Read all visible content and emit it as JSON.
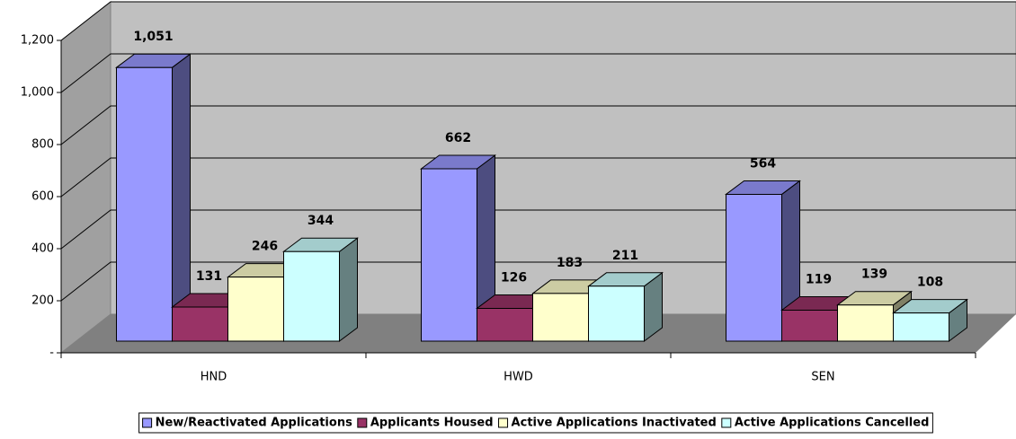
{
  "chart_data": {
    "type": "bar3d",
    "categories": [
      "HND",
      "HWD",
      "SEN"
    ],
    "series": [
      {
        "name": "New/Reactivated Applications",
        "color": "#9999ff",
        "values": [
          1051,
          662,
          564
        ],
        "value_labels": [
          "1,051",
          "662",
          "564"
        ]
      },
      {
        "name": "Applicants Housed",
        "color": "#993366",
        "values": [
          131,
          126,
          119
        ]
      },
      {
        "name": "Active Applications Inactivated",
        "color": "#ffffcc",
        "values": [
          246,
          183,
          139
        ]
      },
      {
        "name": "Active Applications Cancelled",
        "color": "#ccffff",
        "values": [
          344,
          211,
          108
        ]
      }
    ],
    "ylim": [
      0,
      1200
    ],
    "yticks": [
      {
        "value": 0,
        "label": "-"
      },
      200,
      400,
      600,
      800,
      {
        "value": 1000,
        "label": "1,000"
      },
      {
        "value": 1200,
        "label": "1,200"
      }
    ],
    "grid": true,
    "legend": "bottom"
  }
}
